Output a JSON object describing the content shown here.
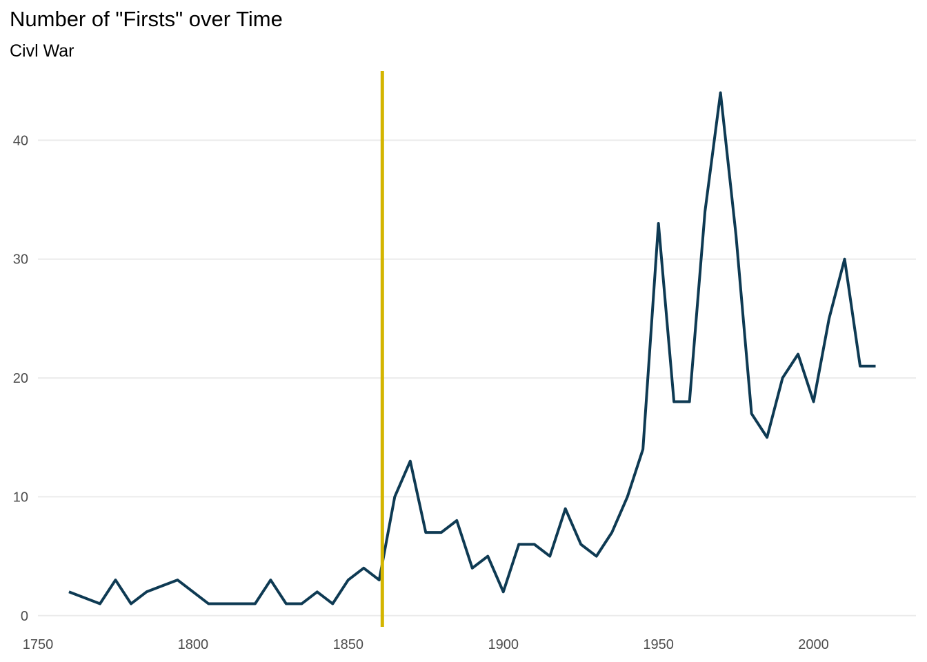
{
  "chart_data": {
    "type": "line",
    "title": "Number of \"Firsts\" over Time",
    "subtitle": "Civl War",
    "xlabel": "",
    "ylabel": "",
    "xlim": [
      1750,
      2033
    ],
    "ylim": [
      -1,
      46
    ],
    "x_ticks": [
      1750,
      1800,
      1850,
      1900,
      1950,
      2000
    ],
    "y_ticks": [
      0,
      10,
      20,
      30,
      40
    ],
    "grid": "horizontal-major",
    "legend": "none",
    "series": [
      {
        "color": "#0e3a53",
        "x": [
          1760,
          1765,
          1770,
          1775,
          1780,
          1785,
          1790,
          1795,
          1800,
          1805,
          1810,
          1815,
          1820,
          1825,
          1830,
          1835,
          1840,
          1845,
          1850,
          1855,
          1860,
          1865,
          1870,
          1875,
          1880,
          1885,
          1890,
          1895,
          1900,
          1905,
          1910,
          1915,
          1920,
          1925,
          1930,
          1935,
          1940,
          1945,
          1950,
          1955,
          1960,
          1965,
          1970,
          1975,
          1980,
          1985,
          1990,
          1995,
          2000,
          2005,
          2010,
          2015,
          2020
        ],
        "values": [
          2,
          1.5,
          1,
          3,
          1,
          2,
          2.5,
          3,
          2,
          1,
          1,
          1,
          1,
          3,
          1,
          1,
          2,
          1,
          3,
          4,
          3,
          10,
          13,
          7,
          7,
          8,
          4,
          5,
          2,
          6,
          6,
          5,
          9,
          6,
          5,
          7,
          10,
          14,
          33,
          18,
          18,
          34,
          44,
          32,
          17,
          15,
          20,
          22,
          18,
          25,
          30,
          21,
          21
        ]
      }
    ],
    "annotations": [
      {
        "type": "vline",
        "x": 1861,
        "color": "#d4b500"
      }
    ]
  }
}
